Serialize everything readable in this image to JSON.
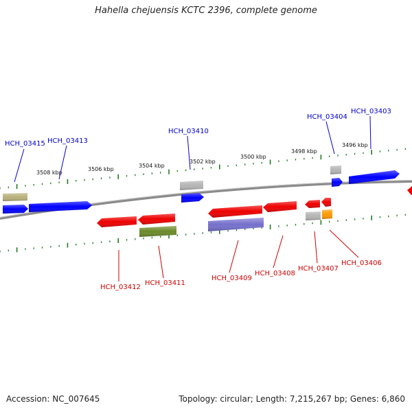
{
  "title": "Hahella chejuensis KCTC 2396, complete genome",
  "footer": {
    "accession": "Accession: NC_007645",
    "topology": "Topology: circular; Length: 7,215,267 bp; Genes: 6,860"
  },
  "colors": {
    "backbone": "#8a8a8a",
    "fwd_label": "#0000cc",
    "rev_label": "#cc0000",
    "tick": "#1f7a1f",
    "gene_blue": "#0000ff",
    "gene_red": "#ee0000",
    "gene_gray": "#b4b4b4",
    "gene_olive": "#b8b07a",
    "gene_green": "#6b8a2a",
    "gene_purple": "#7570cc",
    "gene_orange": "#ff9900"
  },
  "kbp_labels": [
    "3508 kbp",
    "3506 kbp",
    "3504 kbp",
    "3502 kbp",
    "3500 kbp",
    "3498 kbp",
    "3496 kbp"
  ],
  "forward_labels": [
    "HCH_03415",
    "HCH_03413",
    "HCH_03410",
    "HCH_03404",
    "HCH_03403"
  ],
  "reverse_labels": [
    "HCH_03412",
    "HCH_03411",
    "HCH_03409",
    "HCH_03408",
    "HCH_03407",
    "HCH_03406"
  ]
}
